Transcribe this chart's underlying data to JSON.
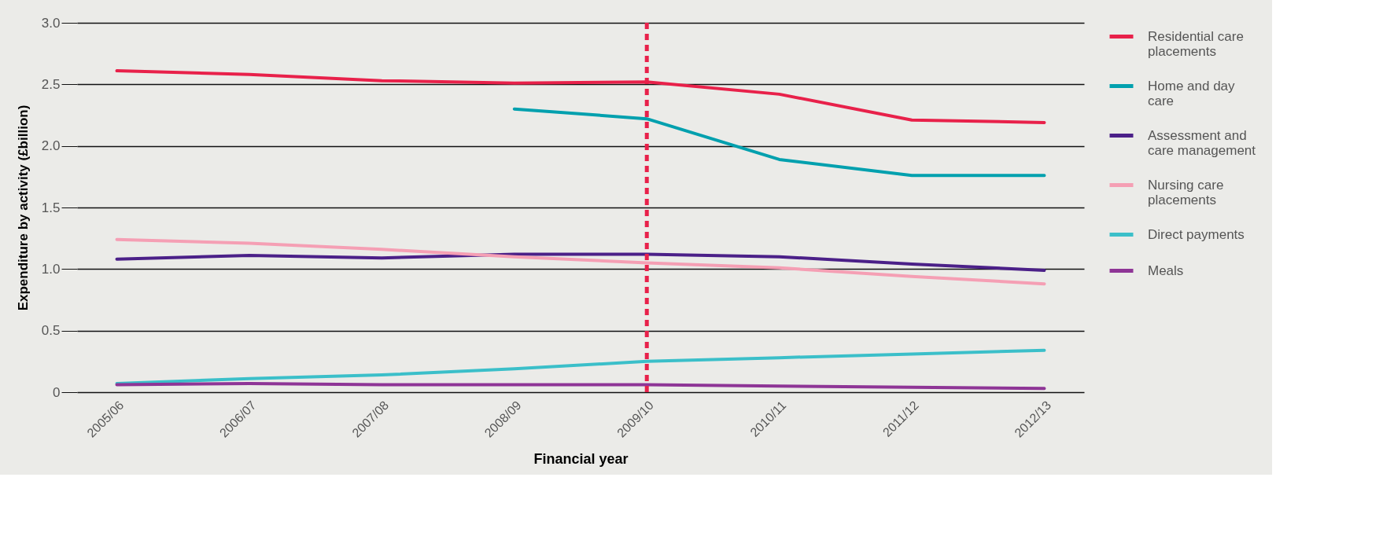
{
  "chart_data": {
    "type": "line",
    "xlabel": "Financial year",
    "ylabel": "Expenditure by activity (£billion)",
    "categories": [
      "2005/06",
      "2006/07",
      "2007/08",
      "2008/09",
      "2009/10",
      "2010/11",
      "2011/12",
      "2012/13"
    ],
    "series": [
      {
        "name": "Residential care placements",
        "color": "#e8214a",
        "values": [
          2.61,
          2.58,
          2.53,
          2.51,
          2.52,
          2.42,
          2.21,
          2.19
        ]
      },
      {
        "name": "Home and day care",
        "color": "#00a0ae",
        "values": [
          null,
          null,
          null,
          2.3,
          2.22,
          1.89,
          1.76,
          1.76
        ]
      },
      {
        "name": "Assessment and care management",
        "color": "#4b2088",
        "values": [
          1.08,
          1.11,
          1.09,
          1.12,
          1.12,
          1.1,
          1.04,
          0.99
        ]
      },
      {
        "name": "Nursing care placements",
        "color": "#f59fb4",
        "values": [
          1.24,
          1.21,
          1.16,
          1.1,
          1.05,
          1.01,
          0.94,
          0.88
        ]
      },
      {
        "name": "Direct payments",
        "color": "#3bbfc9",
        "values": [
          0.07,
          0.11,
          0.14,
          0.19,
          0.25,
          0.28,
          0.31,
          0.34
        ]
      },
      {
        "name": "Meals",
        "color": "#8e3596",
        "values": [
          0.06,
          0.07,
          0.06,
          0.06,
          0.06,
          0.05,
          0.04,
          0.03
        ]
      }
    ],
    "ylim": [
      0,
      3.0
    ],
    "yticks": [
      0,
      {
        "value": 0.5,
        "label": "0.5"
      },
      {
        "value": 1.0,
        "label": "1.0"
      },
      {
        "value": 1.5,
        "label": "1.5"
      },
      {
        "value": 2.0,
        "label": "2.0"
      },
      {
        "value": 2.5,
        "label": "2.5"
      },
      {
        "value": 3.0,
        "label": "3.0"
      }
    ],
    "ref_lines": [
      {
        "axis": "x",
        "value": "2009/10",
        "color": "#e8214a",
        "line_style": "dashed"
      }
    ],
    "grid": "y",
    "legend": "right",
    "marker": "none",
    "line_style": "solid"
  }
}
